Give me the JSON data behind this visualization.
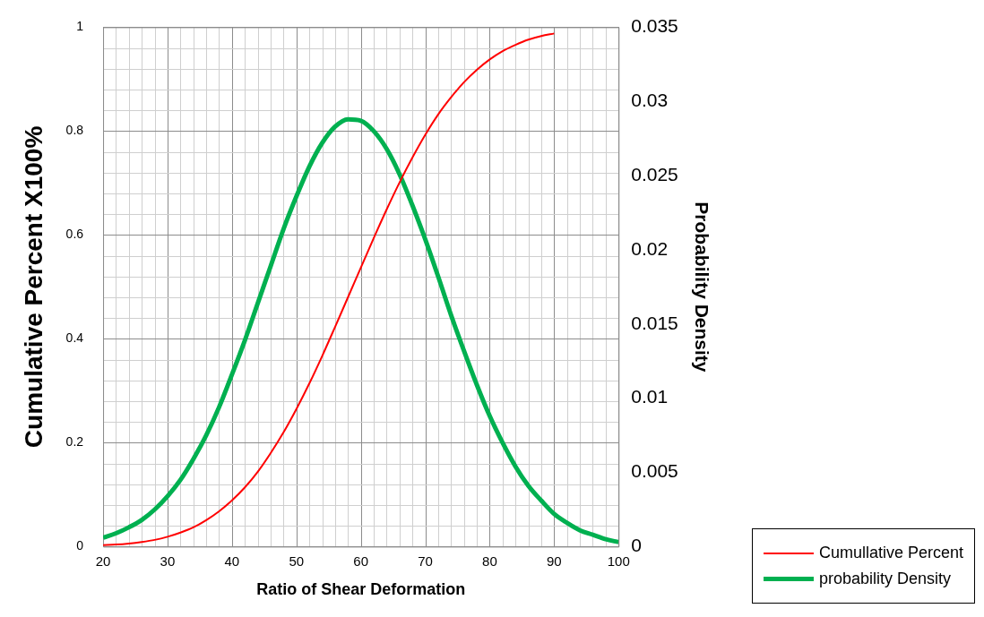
{
  "chart_data": {
    "type": "line",
    "xlabel": "Ratio of Shear Deformation",
    "ylabel": "Cumulative Percent X100%",
    "y2label": "Probability Density",
    "xlim": [
      20,
      100
    ],
    "xticks": [
      20,
      30,
      40,
      50,
      60,
      70,
      80,
      90,
      100
    ],
    "ylim": [
      0,
      1
    ],
    "yticks": [
      0,
      0.2,
      0.4,
      0.6,
      0.8,
      1
    ],
    "y2lim": [
      0,
      0.035
    ],
    "y2ticks": [
      0,
      0.005,
      0.01,
      0.015,
      0.02,
      0.025,
      0.03,
      0.035
    ],
    "grid": true,
    "legend": "bottom right",
    "marker": "none",
    "line_style": "solid",
    "series": [
      {
        "name": "Cumullative Percent",
        "color": "#ff0000",
        "axis": "y",
        "x": [
          20,
          22,
          24,
          26,
          28,
          30,
          32,
          34,
          36,
          38,
          40,
          42,
          44,
          46,
          48,
          50,
          52,
          54,
          56,
          58,
          60,
          62,
          64,
          66,
          68,
          70,
          72,
          74,
          76,
          78,
          80,
          82,
          84,
          86,
          88,
          90
        ],
        "values": [
          0.003,
          0.004,
          0.006,
          0.009,
          0.013,
          0.019,
          0.027,
          0.037,
          0.051,
          0.068,
          0.089,
          0.114,
          0.144,
          0.18,
          0.22,
          0.265,
          0.314,
          0.367,
          0.423,
          0.48,
          0.537,
          0.594,
          0.649,
          0.701,
          0.749,
          0.793,
          0.832,
          0.865,
          0.894,
          0.918,
          0.938,
          0.954,
          0.966,
          0.976,
          0.983,
          0.988
        ]
      },
      {
        "name": "probability Density",
        "color": "#00b050",
        "axis": "y2",
        "x": [
          20,
          22,
          24,
          26,
          28,
          30,
          32,
          34,
          36,
          38,
          40,
          42,
          44,
          46,
          48,
          50,
          52,
          54,
          56,
          58,
          60,
          62,
          64,
          66,
          68,
          70,
          72,
          74,
          76,
          78,
          80,
          82,
          84,
          86,
          88,
          90,
          92,
          94,
          96,
          98,
          100
        ],
        "values": [
          0.0006,
          0.0009,
          0.0013,
          0.0018,
          0.0025,
          0.0034,
          0.0045,
          0.0059,
          0.0075,
          0.0094,
          0.0116,
          0.0139,
          0.0164,
          0.0189,
          0.0214,
          0.0236,
          0.0256,
          0.0272,
          0.0283,
          0.0288,
          0.0287,
          0.028,
          0.0268,
          0.0251,
          0.023,
          0.0207,
          0.0182,
          0.0156,
          0.0132,
          0.0109,
          0.0088,
          0.007,
          0.0054,
          0.0041,
          0.0031,
          0.0022,
          0.0016,
          0.0011,
          0.0008,
          0.0005,
          0.0003
        ]
      }
    ]
  }
}
